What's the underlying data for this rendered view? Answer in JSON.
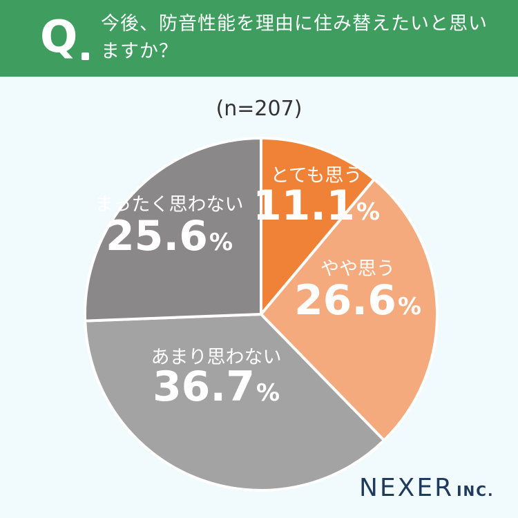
{
  "header": {
    "q_label": "Q",
    "question": "今後、防音性能を理由に住み替えたいと思いますか？"
  },
  "sample_size": "(n=207)",
  "chart_data": {
    "type": "pie",
    "title": "今後、防音性能を理由に住み替えたいと思いますか？",
    "slices": [
      {
        "label": "とても思う",
        "value": 11.1,
        "value_label": "11.1",
        "unit": "%",
        "color": "#ef8237"
      },
      {
        "label": "やや思う",
        "value": 26.6,
        "value_label": "26.6",
        "unit": "%",
        "color": "#f4aa7c"
      },
      {
        "label": "あまり思わない",
        "value": 36.7,
        "value_label": "36.7",
        "unit": "%",
        "color": "#a3a3a3"
      },
      {
        "label": "まったく思わない",
        "value": 25.6,
        "value_label": "25.6",
        "unit": "%",
        "color": "#8a8889"
      }
    ]
  },
  "logo": {
    "main": "NEXER",
    "suffix": "INC."
  }
}
